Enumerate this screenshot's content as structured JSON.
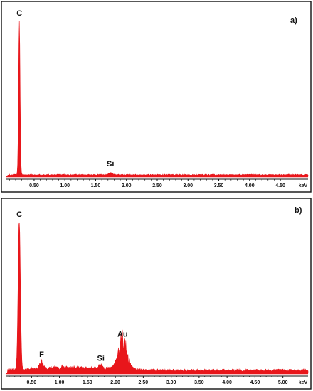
{
  "chart_data": [
    {
      "type": "area",
      "panel_label": "a)",
      "x_unit": "keV",
      "xlim": [
        0.05,
        4.95
      ],
      "xticks": [
        "0.50",
        "1.00",
        "1.50",
        "2.00",
        "2.50",
        "3.00",
        "3.50",
        "4.00",
        "4.50"
      ],
      "peaks": [
        {
          "label": "C",
          "x": 0.26,
          "height": 1.0,
          "width": 0.012
        },
        {
          "label": "Si",
          "x": 1.74,
          "height": 0.012,
          "width": 0.03
        }
      ],
      "baseline": 0.01,
      "grid": false,
      "color": "#e8161b"
    },
    {
      "type": "area",
      "panel_label": "b)",
      "x_unit": "keV",
      "xlim": [
        0.05,
        5.45
      ],
      "xticks": [
        "0.50",
        "1.00",
        "1.50",
        "2.00",
        "2.50",
        "3.00",
        "3.50",
        "4.00",
        "4.50",
        "5.00"
      ],
      "peaks": [
        {
          "label": "C",
          "x": 0.28,
          "height": 1.0,
          "width": 0.02
        },
        {
          "label": "F",
          "x": 0.68,
          "height": 0.045,
          "width": 0.03
        },
        {
          "label": "Si",
          "x": 1.74,
          "height": 0.02,
          "width": 0.03
        },
        {
          "label": "Au",
          "x": 2.13,
          "height": 0.18,
          "width": 0.08
        }
      ],
      "baseline": 0.02,
      "grid": false,
      "color": "#e8161b"
    }
  ]
}
